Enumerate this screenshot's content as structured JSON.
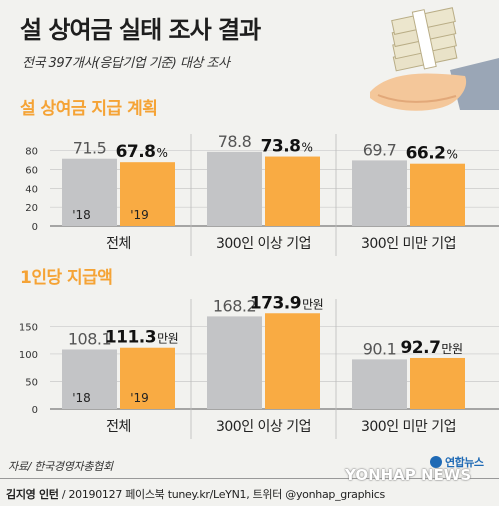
{
  "title": "설 상여금 실태 조사 결과",
  "subtitle": "전국 397개사(응답기업 기준) 대상 조사",
  "source": "자료/ 한국경영자총협회",
  "credit": {
    "author": "김지영 인턴",
    "rest": " / 20190127  페이스북 tuney.kr/LeYN1, 트위터 @yonhap_graphics"
  },
  "agency": {
    "name_ko": "연합뉴스",
    "name_en": "YONHAP NEWS"
  },
  "colors": {
    "bar_2018": "#c3c4c6",
    "bar_2019": "#f9ab43",
    "accent": "#f5a335"
  },
  "chart_data": [
    {
      "type": "bar",
      "title": "설 상여금 지급 계획",
      "categories": [
        "전체",
        "300인 이상 기업",
        "300인 미만 기업"
      ],
      "series": [
        {
          "name": "'18",
          "values": [
            71.5,
            78.8,
            69.7
          ]
        },
        {
          "name": "'19",
          "values": [
            67.8,
            73.8,
            66.2
          ]
        }
      ],
      "value_labels": [
        [
          "71.5",
          "78.8",
          "69.7"
        ],
        [
          "67.8",
          "73.8",
          "66.2"
        ]
      ],
      "unit": "%",
      "yticks": [
        0,
        20,
        40,
        60,
        80
      ],
      "ylim": [
        0,
        85
      ],
      "grid": true
    },
    {
      "type": "bar",
      "title": "1인당 지급액",
      "categories": [
        "전체",
        "300인 이상 기업",
        "300인 미만 기업"
      ],
      "series": [
        {
          "name": "'18",
          "values": [
            108.1,
            168.2,
            90.1
          ]
        },
        {
          "name": "'19",
          "values": [
            111.3,
            173.9,
            92.7
          ]
        }
      ],
      "value_labels": [
        [
          "108.1",
          "168.2",
          "90.1"
        ],
        [
          "111.3",
          "173.9",
          "92.7"
        ]
      ],
      "unit": "만원",
      "yticks": [
        0,
        50,
        100,
        150
      ],
      "ylim": [
        0,
        178
      ],
      "grid": true
    }
  ]
}
